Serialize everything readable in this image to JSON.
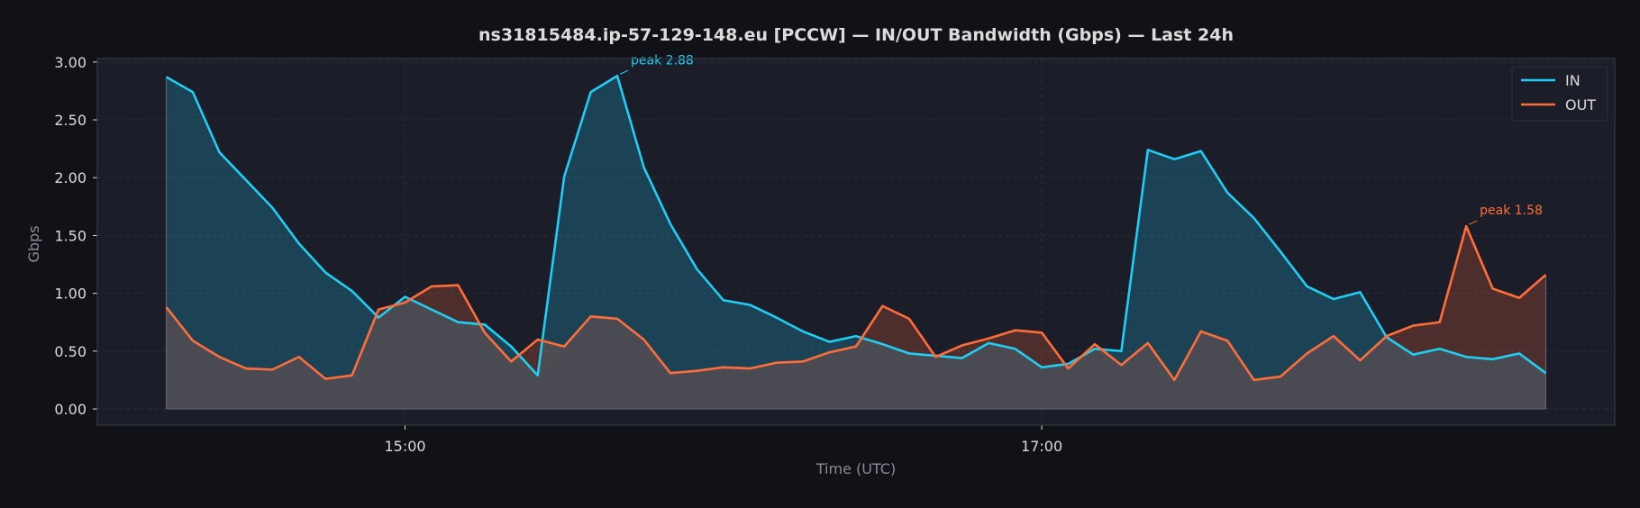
{
  "chart_data": {
    "type": "area",
    "title": "ns31815484.ip-57-129-148.eu [PCCW] — IN/OUT Bandwidth (Gbps) — Last 24h",
    "xlabel": "Time (UTC)",
    "ylabel": "Gbps",
    "x_start": "14:15",
    "x_step_minutes": 5,
    "xticks": [
      "15:00",
      "17:00"
    ],
    "yticks": [
      "0.00",
      "0.50",
      "1.00",
      "1.50",
      "2.00",
      "2.50",
      "3.00"
    ],
    "ylim": [
      -0.14,
      3.03
    ],
    "grid": true,
    "legend_position": "top-right",
    "series": [
      {
        "name": "IN",
        "color": "#22cdf3",
        "values": [
          2.87,
          2.74,
          2.22,
          1.98,
          1.74,
          1.43,
          1.18,
          1.02,
          0.79,
          0.97,
          0.86,
          0.75,
          0.73,
          0.54,
          0.29,
          2.01,
          2.74,
          2.88,
          2.09,
          1.6,
          1.21,
          0.94,
          0.9,
          0.79,
          0.67,
          0.58,
          0.63,
          0.56,
          0.48,
          0.46,
          0.44,
          0.57,
          0.52,
          0.36,
          0.39,
          0.52,
          0.5,
          2.24,
          2.16,
          2.23,
          1.87,
          1.65,
          1.36,
          1.06,
          0.95,
          1.01,
          0.62,
          0.47,
          0.52,
          0.45,
          0.43,
          0.48,
          0.31
        ]
      },
      {
        "name": "OUT",
        "color": "#ff6e3a",
        "values": [
          0.88,
          0.59,
          0.45,
          0.35,
          0.34,
          0.45,
          0.26,
          0.29,
          0.86,
          0.92,
          1.06,
          1.07,
          0.66,
          0.41,
          0.6,
          0.54,
          0.8,
          0.78,
          0.6,
          0.31,
          0.33,
          0.36,
          0.35,
          0.4,
          0.41,
          0.49,
          0.54,
          0.89,
          0.78,
          0.45,
          0.55,
          0.61,
          0.68,
          0.66,
          0.35,
          0.56,
          0.38,
          0.57,
          0.25,
          0.67,
          0.59,
          0.25,
          0.28,
          0.48,
          0.63,
          0.42,
          0.63,
          0.72,
          0.75,
          1.58,
          1.04,
          0.96,
          1.16
        ]
      }
    ],
    "annotations": [
      {
        "series": "IN",
        "index": 17,
        "text": "peak 2.88"
      },
      {
        "series": "OUT",
        "index": 49,
        "text": "peak 1.58"
      }
    ]
  },
  "colors": {
    "figure_bg": "#111217",
    "plot_bg": "#1b1d29",
    "text": "#dcdcdc",
    "label": "#8a8d96",
    "grid": "#2c2f3b",
    "frame": "#3a3d48",
    "baseline_fill": "#4a4b52"
  }
}
